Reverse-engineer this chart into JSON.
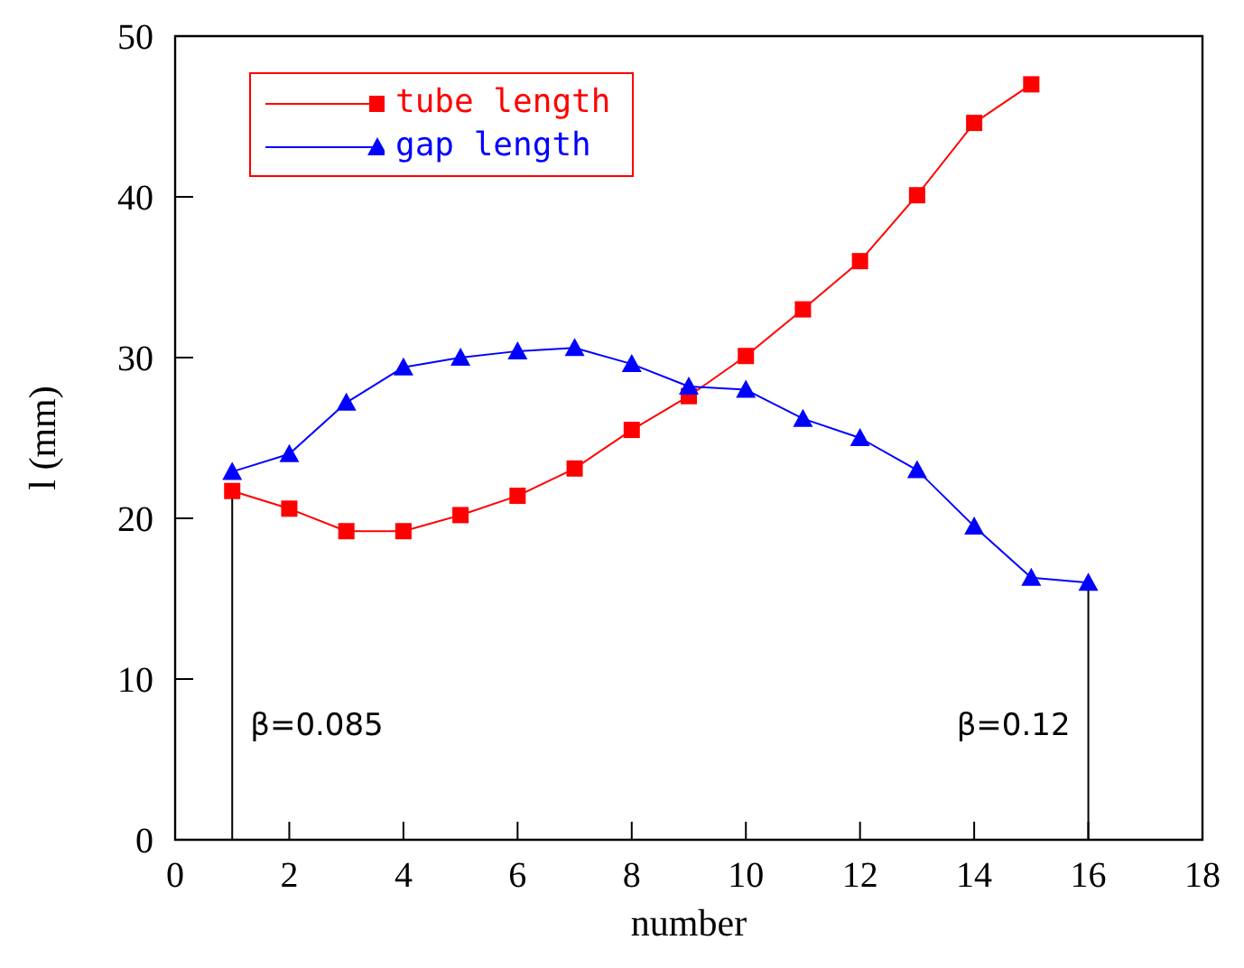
{
  "chart_data": {
    "type": "line",
    "xlabel": "number",
    "ylabel": "l (mm)",
    "x": [
      1,
      2,
      3,
      4,
      5,
      6,
      7,
      8,
      9,
      10,
      11,
      12,
      13,
      14,
      15,
      16
    ],
    "series": [
      {
        "name": "tube length",
        "color": "#ff0000",
        "marker": "square",
        "values": [
          21.7,
          20.6,
          19.2,
          19.2,
          20.2,
          21.4,
          23.1,
          25.5,
          27.6,
          30.1,
          33,
          36,
          40.1,
          44.6,
          47,
          null
        ]
      },
      {
        "name": "gap length",
        "color": "#0000ff",
        "marker": "triangle",
        "values": [
          22.9,
          24,
          27.2,
          29.4,
          30,
          30.4,
          30.6,
          29.6,
          28.2,
          28,
          26.2,
          25,
          23,
          19.5,
          16.3,
          16
        ]
      }
    ],
    "xlim": [
      0,
      18
    ],
    "xticks": [
      0,
      2,
      4,
      6,
      8,
      10,
      12,
      14,
      16,
      18
    ],
    "ylim": [
      0,
      50
    ],
    "yticks": [
      0,
      10,
      20,
      30,
      40,
      50
    ],
    "ref_lines": [
      {
        "axis": "x",
        "value": 1
      },
      {
        "axis": "x",
        "value": 16
      }
    ],
    "annotations": [
      "β=0.085",
      "β=0.12"
    ],
    "legend": "top left",
    "grid": false
  }
}
